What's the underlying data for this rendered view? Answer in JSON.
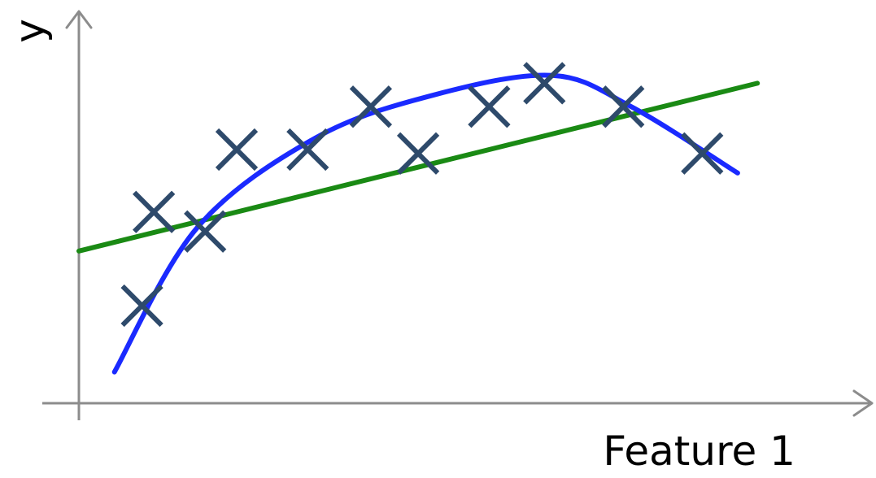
{
  "chart_data": {
    "type": "scatter",
    "title": "",
    "xlabel": "Feature 1",
    "ylabel": "y",
    "xlim": [
      0,
      10
    ],
    "ylim": [
      0,
      10
    ],
    "grid": false,
    "legend": "none",
    "ticks": "none",
    "points": {
      "marker": "x",
      "color": "#2e4a6b",
      "x": [
        0.8,
        0.95,
        1.6,
        2.0,
        2.9,
        3.7,
        4.3,
        5.2,
        5.9,
        6.9,
        7.9
      ],
      "y": [
        2.5,
        4.9,
        4.4,
        6.5,
        6.5,
        7.6,
        6.4,
        7.6,
        8.2,
        7.6,
        6.4
      ]
    },
    "lines": [
      {
        "kind": "linear-fit",
        "color": "#1a8a14",
        "x": [
          0.0,
          8.6
        ],
        "y": [
          3.9,
          8.2
        ]
      },
      {
        "kind": "polynomial-fit",
        "color": "#1a2aff",
        "x": [
          0.45,
          1.5,
          3.0,
          4.5,
          6.0,
          7.0,
          8.35
        ],
        "y": [
          0.8,
          4.5,
          6.8,
          7.9,
          8.4,
          7.6,
          5.9
        ]
      }
    ]
  }
}
